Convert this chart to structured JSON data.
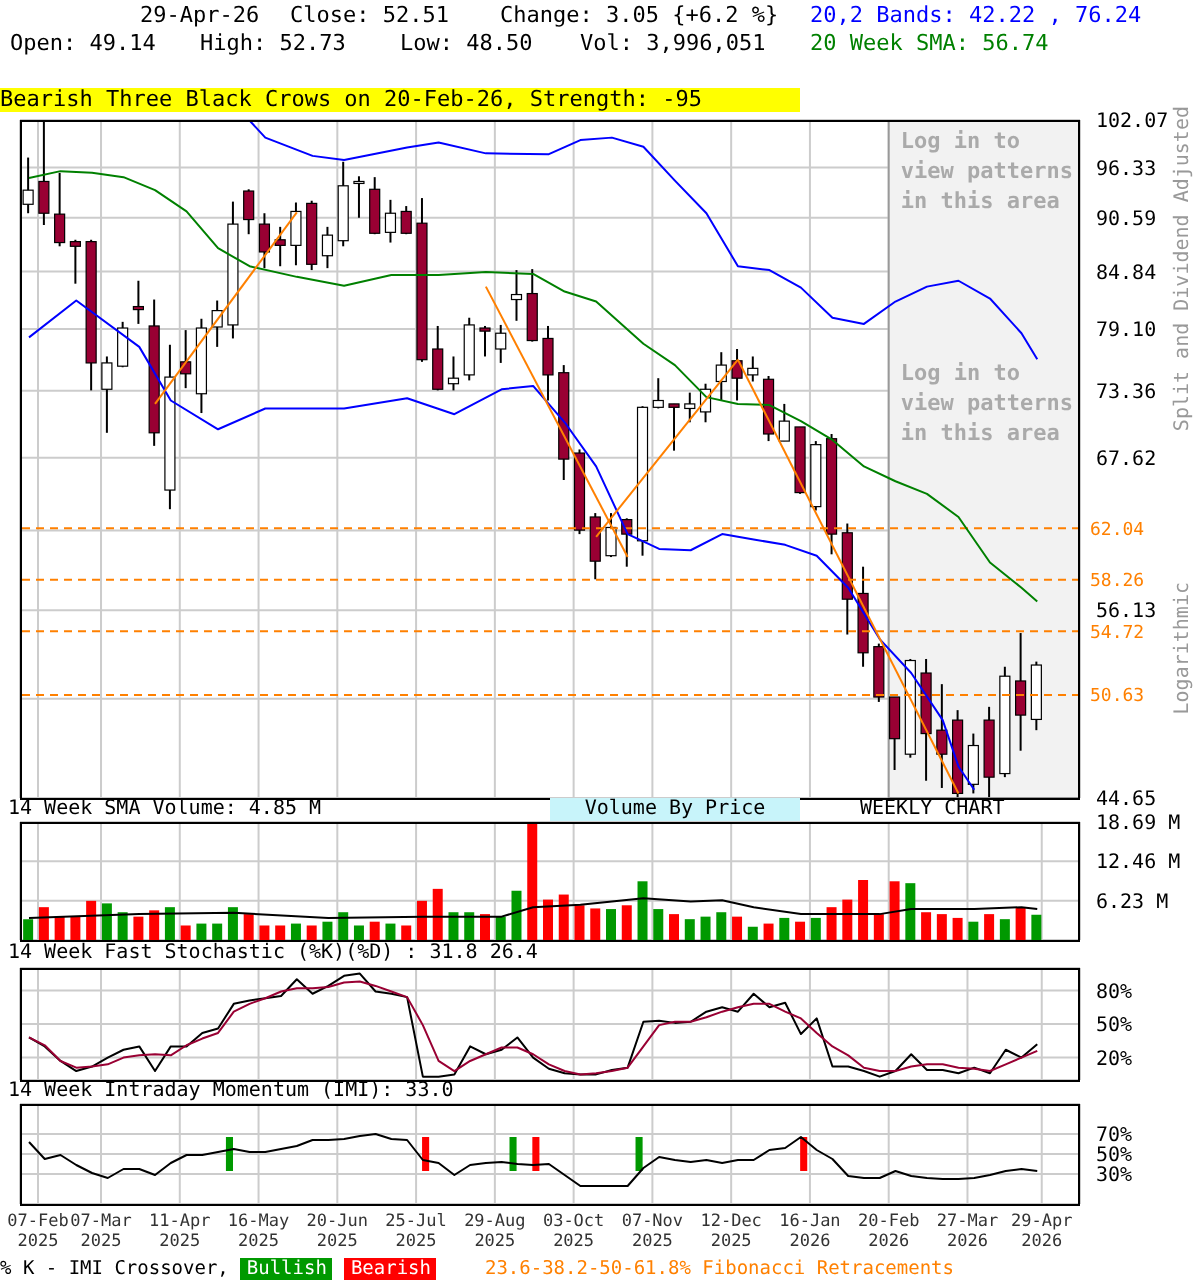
{
  "chart_data": [
    {
      "type": "candlestick",
      "ylabel": "Split and Dividend Adjusted",
      "log": true,
      "grid": true,
      "tick_labels": "y",
      "annotations": [
        "29-Apr-26",
        "Close: 52.51",
        "Change: 3.05 {+6.2 %}",
        "Open: 49.14",
        "High: 52.73",
        "Low: 48.50",
        "Vol: 3,996,051",
        "20,2 Bands: 42.22 , 76.24",
        "20 Week SMA: 56.74",
        "Bearish Three Black Crows on 20-Feb-26, Strength: -95",
        "Log in to view patterns in this area",
        "Logarithmic"
      ],
      "x": [
        "2025-02-03",
        "2025-02-10",
        "2025-02-17",
        "2025-02-24",
        "2025-03-03",
        "2025-03-10",
        "2025-03-17",
        "2025-03-24",
        "2025-03-31",
        "2025-04-07",
        "2025-04-14",
        "2025-04-21",
        "2025-04-28",
        "2025-05-05",
        "2025-05-12",
        "2025-05-19",
        "2025-05-26",
        "2025-06-02",
        "2025-06-09",
        "2025-06-16",
        "2025-06-23",
        "2025-06-30",
        "2025-07-07",
        "2025-07-14",
        "2025-07-21",
        "2025-07-28",
        "2025-08-04",
        "2025-08-11",
        "2025-08-18",
        "2025-08-25",
        "2025-09-01",
        "2025-09-08",
        "2025-09-15",
        "2025-09-22",
        "2025-09-29",
        "2025-10-06",
        "2025-10-13",
        "2025-10-20",
        "2025-10-27",
        "2025-11-03",
        "2025-11-10",
        "2025-11-17",
        "2025-11-24",
        "2025-12-01",
        "2025-12-08",
        "2025-12-15",
        "2025-12-22",
        "2025-12-29",
        "2026-01-05",
        "2026-01-12",
        "2026-01-19",
        "2026-01-26",
        "2026-02-02",
        "2026-02-09",
        "2026-02-16",
        "2026-02-23",
        "2026-03-02",
        "2026-03-09",
        "2026-03-16",
        "2026-03-23",
        "2026-03-30",
        "2026-04-06",
        "2026-04-13",
        "2026-04-20",
        "2026-04-27"
      ],
      "ohlc": [
        [
          92.1,
          97.5,
          91.1,
          93.7
        ],
        [
          94.7,
          101.9,
          89.8,
          91.1
        ],
        [
          91.0,
          95.7,
          87.5,
          87.9
        ],
        [
          88.0,
          88.2,
          83.6,
          87.5
        ],
        [
          88.0,
          88.2,
          73.4,
          75.9
        ],
        [
          73.5,
          76.5,
          69.7,
          75.9
        ],
        [
          75.6,
          79.8,
          75.5,
          79.2
        ],
        [
          81.3,
          83.9,
          79.6,
          81.0
        ],
        [
          79.4,
          82.0,
          68.6,
          69.7
        ],
        [
          65.0,
          77.6,
          63.5,
          74.6
        ],
        [
          76.0,
          79.0,
          73.6,
          74.9
        ],
        [
          73.1,
          80.1,
          71.4,
          79.2
        ],
        [
          79.3,
          81.9,
          77.4,
          80.9
        ],
        [
          79.5,
          92.4,
          78.2,
          89.9
        ],
        [
          93.6,
          93.8,
          88.8,
          90.4
        ],
        [
          89.9,
          91.1,
          85.2,
          86.9
        ],
        [
          88.2,
          89.6,
          85.4,
          87.6
        ],
        [
          87.6,
          92.3,
          85.5,
          91.3
        ],
        [
          92.2,
          92.5,
          85.0,
          85.6
        ],
        [
          86.5,
          89.6,
          85.2,
          88.7
        ],
        [
          88.1,
          97.0,
          87.5,
          94.2
        ],
        [
          94.6,
          95.3,
          90.6,
          94.7
        ],
        [
          93.8,
          95.2,
          88.8,
          88.9
        ],
        [
          89.0,
          92.6,
          87.9,
          91.1
        ],
        [
          91.3,
          91.9,
          88.8,
          88.9
        ],
        [
          90.0,
          92.8,
          76.0,
          76.2
        ],
        [
          77.2,
          79.4,
          73.4,
          73.5
        ],
        [
          74.0,
          76.5,
          73.4,
          74.5
        ],
        [
          74.8,
          80.2,
          74.3,
          79.5
        ],
        [
          79.2,
          79.4,
          76.5,
          78.9
        ],
        [
          77.2,
          79.5,
          75.9,
          78.7
        ],
        [
          82.0,
          85.0,
          79.9,
          82.5
        ],
        [
          82.6,
          85.1,
          77.9,
          78.0
        ],
        [
          78.2,
          79.4,
          72.5,
          74.8
        ],
        [
          75.0,
          75.7,
          65.8,
          67.5
        ],
        [
          68.0,
          68.3,
          61.6,
          61.9
        ],
        [
          62.9,
          63.2,
          58.3,
          59.6
        ],
        [
          60.0,
          63.2,
          59.9,
          62.1
        ],
        [
          62.7,
          62.8,
          59.2,
          61.6
        ],
        [
          61.1,
          72.0,
          60.0,
          71.9
        ],
        [
          71.9,
          74.5,
          71.8,
          72.5
        ],
        [
          72.2,
          72.2,
          68.2,
          71.9
        ],
        [
          71.8,
          73.2,
          70.6,
          72.2
        ],
        [
          71.5,
          74.0,
          70.6,
          73.5
        ],
        [
          74.2,
          76.9,
          72.5,
          75.7
        ],
        [
          76.1,
          77.2,
          72.5,
          74.5
        ],
        [
          74.8,
          76.5,
          74.2,
          75.4
        ],
        [
          74.4,
          74.7,
          69.0,
          69.6
        ],
        [
          69.0,
          72.2,
          69.0,
          70.7
        ],
        [
          70.2,
          70.2,
          64.7,
          64.8
        ],
        [
          63.7,
          69.0,
          63.4,
          68.7
        ],
        [
          69.2,
          69.6,
          60.1,
          61.6
        ],
        [
          61.7,
          62.4,
          54.5,
          56.9
        ],
        [
          57.3,
          59.2,
          52.4,
          53.3
        ],
        [
          53.7,
          53.9,
          50.2,
          50.5
        ],
        [
          50.5,
          50.5,
          46.2,
          48.0
        ],
        [
          47.1,
          52.9,
          46.9,
          52.8
        ],
        [
          52.0,
          52.9,
          45.6,
          48.3
        ],
        [
          48.5,
          51.3,
          45.2,
          47.1
        ],
        [
          49.1,
          49.7,
          44.7,
          44.9
        ],
        [
          45.4,
          48.3,
          44.9,
          47.6
        ],
        [
          49.1,
          49.9,
          44.7,
          45.8
        ],
        [
          46.0,
          52.4,
          45.8,
          51.8
        ],
        [
          51.5,
          54.6,
          47.3,
          49.4
        ],
        [
          49.14,
          52.73,
          48.5,
          52.51
        ]
      ],
      "colors": [
        "#ffffff",
        "#990033",
        "#990033",
        "#990033",
        "#990033",
        "#ffffff",
        "#ffffff",
        "#990033",
        "#990033",
        "#ffffff",
        "#990033",
        "#ffffff",
        "#ffffff",
        "#ffffff",
        "#990033",
        "#990033",
        "#990033",
        "#ffffff",
        "#990033",
        "#ffffff",
        "#ffffff",
        "#ffffff",
        "#990033",
        "#ffffff",
        "#990033",
        "#990033",
        "#990033",
        "#ffffff",
        "#ffffff",
        "#990033",
        "#ffffff",
        "#ffffff",
        "#990033",
        "#990033",
        "#990033",
        "#990033",
        "#990033",
        "#ffffff",
        "#990033",
        "#ffffff",
        "#ffffff",
        "#990033",
        "#ffffff",
        "#ffffff",
        "#ffffff",
        "#990033",
        "#ffffff",
        "#990033",
        "#ffffff",
        "#990033",
        "#ffffff",
        "#990033",
        "#990033",
        "#990033",
        "#990033",
        "#990033",
        "#ffffff",
        "#990033",
        "#990033",
        "#990033",
        "#ffffff",
        "#990033",
        "#ffffff",
        "#990033",
        "#ffffff"
      ],
      "series": [
        {
          "type": "line",
          "color": "#0000ff",
          "x": [
            "2025-05-12",
            "2025-05-19",
            "2025-06-09",
            "2025-06-23",
            "2025-07-21",
            "2025-08-04",
            "2025-08-25",
            "2025-09-22",
            "2025-10-06",
            "2025-10-20",
            "2025-11-03",
            "2025-11-17",
            "2025-12-01",
            "2025-12-15",
            "2025-12-29",
            "2026-01-12",
            "2026-01-26",
            "2026-02-09",
            "2026-02-23",
            "2026-03-09",
            "2026-03-23",
            "2026-04-06",
            "2026-04-20",
            "2026-04-27"
          ],
          "values": [
            102.0,
            99.9,
            97.7,
            97.2,
            98.7,
            99.3,
            98.0,
            97.9,
            99.6,
            99.9,
            98.8,
            94.8,
            91.1,
            85.4,
            85.0,
            83.2,
            80.2,
            79.6,
            81.8,
            83.3,
            83.9,
            82.1,
            78.7,
            76.24
          ]
        },
        {
          "type": "line",
          "color": "#0000ff",
          "x": [
            "2025-02-03",
            "2025-02-24",
            "2025-03-24",
            "2025-04-07",
            "2025-04-28",
            "2025-05-19",
            "2025-06-23",
            "2025-07-21",
            "2025-08-11",
            "2025-09-01",
            "2025-09-15",
            "2025-09-29",
            "2025-10-13",
            "2025-10-27",
            "2025-11-10",
            "2025-11-24",
            "2025-12-08",
            "2025-12-22",
            "2026-01-05",
            "2026-01-19",
            "2026-02-02",
            "2026-02-16",
            "2026-03-02",
            "2026-03-16",
            "2026-03-23",
            "2026-03-30"
          ],
          "values": [
            78.3,
            81.9,
            77.4,
            72.5,
            70.0,
            71.8,
            71.8,
            72.7,
            71.3,
            73.5,
            73.8,
            70.6,
            66.9,
            61.6,
            60.5,
            60.4,
            61.6,
            61.2,
            60.8,
            60.0,
            57.7,
            54.2,
            52.0,
            49.1,
            46.4,
            45.1
          ]
        },
        {
          "type": "line",
          "color": "#008000",
          "x": [
            "2025-02-03",
            "2025-02-17",
            "2025-03-03",
            "2025-03-17",
            "2025-03-31",
            "2025-04-14",
            "2025-04-28",
            "2025-05-12",
            "2025-06-02",
            "2025-06-23",
            "2025-07-14",
            "2025-08-04",
            "2025-08-25",
            "2025-09-15",
            "2025-09-29",
            "2025-10-13",
            "2025-11-03",
            "2025-11-17",
            "2025-12-01",
            "2025-12-15",
            "2025-12-29",
            "2026-01-12",
            "2026-01-26",
            "2026-02-09",
            "2026-02-23",
            "2026-03-09",
            "2026-03-23",
            "2026-04-06",
            "2026-04-20",
            "2026-04-27"
          ],
          "values": [
            95.1,
            95.9,
            95.7,
            95.2,
            93.7,
            91.3,
            87.3,
            85.4,
            84.3,
            83.4,
            84.5,
            84.5,
            84.8,
            84.6,
            82.8,
            81.8,
            77.7,
            75.7,
            72.8,
            72.2,
            72.1,
            70.7,
            69.1,
            66.9,
            65.7,
            64.7,
            62.9,
            59.5,
            57.7,
            56.74
          ]
        },
        {
          "type": "line",
          "color": "#ff8000",
          "x": [
            "2025-03-31",
            "2025-06-02"
          ],
          "values": [
            72.2,
            91.2
          ]
        },
        {
          "type": "line",
          "color": "#ff8000",
          "x": [
            "2025-08-25",
            "2025-10-27"
          ],
          "values": [
            83.3,
            59.9
          ]
        },
        {
          "type": "line",
          "color": "#ff8000",
          "x": [
            "2025-10-13",
            "2025-12-15"
          ],
          "values": [
            61.4,
            76.2
          ]
        },
        {
          "type": "line",
          "color": "#ff8000",
          "x": [
            "2025-12-15",
            "2026-03-23"
          ],
          "values": [
            76.2,
            44.9
          ]
        }
      ],
      "xlim": [
        "2025-01-30",
        "2026-05-16"
      ],
      "xticks": [
        "2025-02-07",
        "2025-03-07",
        "2025-04-11",
        "2025-05-16",
        "2025-06-20",
        "2025-07-25",
        "2025-08-29",
        "2025-10-03",
        "2025-11-07",
        "2025-12-12",
        "2026-01-16",
        "2026-02-20",
        "2026-03-27",
        "2026-04-29"
      ],
      "ylim": [
        44.65,
        102.07
      ],
      "yticks": [
        44.65,
        {
          "value": 50.39,
          "label": null
        },
        56.13,
        {
          "value": 61.88,
          "label": null
        },
        67.62,
        73.36,
        {
          "value": 79.1,
          "label": "79.10"
        },
        84.84,
        90.59,
        96.33,
        102.07
      ],
      "ref_lines": [
        {
          "axis": "y",
          "value": 62.04,
          "label": "62.04",
          "color": "#ff8000",
          "line_style": "dashed"
        },
        {
          "axis": "y",
          "value": 58.26,
          "label": "58.26",
          "color": "#ff8000",
          "line_style": "dashed"
        },
        {
          "axis": "y",
          "value": 54.72,
          "label": "54.72",
          "color": "#ff8000",
          "line_style": "dashed"
        },
        {
          "axis": "y",
          "value": 50.63,
          "label": "50.63",
          "color": "#ff8000",
          "line_style": "dashed"
        }
      ],
      "bands": [
        {
          "axis": "x",
          "from": "2026-02-20",
          "to": "2026-05-16",
          "label": "Log in to view patterns in this area",
          "color": "#f2f2f2"
        }
      ]
    },
    {
      "type": "bar",
      "title": "14 Week SMA Volume: 4.85 M",
      "grid": true,
      "tick_labels": "y",
      "annotations": [
        "Volume By Price",
        "WEEKLY CHART"
      ],
      "x": [
        "2025-02-03",
        "2025-02-10",
        "2025-02-17",
        "2025-02-24",
        "2025-03-03",
        "2025-03-10",
        "2025-03-17",
        "2025-03-24",
        "2025-03-31",
        "2025-04-07",
        "2025-04-14",
        "2025-04-21",
        "2025-04-28",
        "2025-05-05",
        "2025-05-12",
        "2025-05-19",
        "2025-05-26",
        "2025-06-02",
        "2025-06-09",
        "2025-06-16",
        "2025-06-23",
        "2025-06-30",
        "2025-07-07",
        "2025-07-14",
        "2025-07-21",
        "2025-07-28",
        "2025-08-04",
        "2025-08-11",
        "2025-08-18",
        "2025-08-25",
        "2025-09-01",
        "2025-09-08",
        "2025-09-15",
        "2025-09-22",
        "2025-09-29",
        "2025-10-06",
        "2025-10-13",
        "2025-10-20",
        "2025-10-27",
        "2025-11-03",
        "2025-11-10",
        "2025-11-17",
        "2025-11-24",
        "2025-12-01",
        "2025-12-08",
        "2025-12-15",
        "2025-12-22",
        "2025-12-29",
        "2026-01-05",
        "2026-01-12",
        "2026-01-19",
        "2026-01-26",
        "2026-02-02",
        "2026-02-09",
        "2026-02-16",
        "2026-02-23",
        "2026-03-02",
        "2026-03-09",
        "2026-03-16",
        "2026-03-23",
        "2026-03-30",
        "2026-04-06",
        "2026-04-13",
        "2026-04-20",
        "2026-04-27"
      ],
      "series": [
        {
          "type": "bar",
          "values": [
            3.3,
            5.2,
            3.7,
            3.7,
            6.2,
            5.8,
            4.4,
            3.7,
            4.7,
            5.2,
            2.3,
            2.6,
            2.6,
            5.2,
            4.1,
            2.3,
            2.3,
            2.6,
            2.3,
            2.9,
            4.4,
            2.3,
            2.9,
            2.6,
            2.3,
            6.2,
            8.1,
            4.4,
            4.4,
            4.1,
            3.7,
            7.8,
            18.6,
            6.4,
            7.2,
            5.5,
            5.0,
            4.9,
            5.5,
            9.3,
            4.9,
            4.1,
            3.3,
            3.7,
            4.4,
            3.7,
            2.1,
            2.6,
            3.5,
            2.9,
            3.5,
            5.2,
            6.4,
            9.5,
            4.1,
            9.3,
            9.0,
            4.4,
            4.1,
            3.5,
            2.9,
            4.1,
            3.3,
            5.2,
            4.0
          ],
          "colors": [
            "#009900",
            "#ff0000",
            "#ff0000",
            "#ff0000",
            "#ff0000",
            "#009900",
            "#009900",
            "#ff0000",
            "#ff0000",
            "#009900",
            "#ff0000",
            "#009900",
            "#009900",
            "#009900",
            "#ff0000",
            "#ff0000",
            "#ff0000",
            "#009900",
            "#ff0000",
            "#009900",
            "#009900",
            "#009900",
            "#ff0000",
            "#009900",
            "#ff0000",
            "#ff0000",
            "#ff0000",
            "#009900",
            "#009900",
            "#ff0000",
            "#009900",
            "#009900",
            "#ff0000",
            "#ff0000",
            "#ff0000",
            "#ff0000",
            "#ff0000",
            "#009900",
            "#ff0000",
            "#009900",
            "#009900",
            "#ff0000",
            "#009900",
            "#009900",
            "#009900",
            "#ff0000",
            "#009900",
            "#ff0000",
            "#009900",
            "#ff0000",
            "#009900",
            "#ff0000",
            "#ff0000",
            "#ff0000",
            "#ff0000",
            "#ff0000",
            "#009900",
            "#ff0000",
            "#ff0000",
            "#ff0000",
            "#009900",
            "#ff0000",
            "#009900",
            "#ff0000",
            "#009900"
          ]
        },
        {
          "type": "line",
          "color": "#000000",
          "x": [
            "2025-02-03",
            "2025-03-24",
            "2025-05-05",
            "2025-06-16",
            "2025-07-28",
            "2025-09-01",
            "2025-09-15",
            "2025-10-06",
            "2025-11-03",
            "2025-11-24",
            "2025-12-08",
            "2025-12-22",
            "2026-01-12",
            "2026-02-16",
            "2026-03-02",
            "2026-03-30",
            "2026-04-20",
            "2026-04-27"
          ],
          "values": [
            3.5,
            4.1,
            4.3,
            3.5,
            3.7,
            3.7,
            5.2,
            5.6,
            6.6,
            6.1,
            6.3,
            5.2,
            4.1,
            4.1,
            4.9,
            4.9,
            5.2,
            4.9
          ]
        }
      ],
      "xlim": [
        "2025-01-30",
        "2026-05-16"
      ],
      "xticks": [
        "2025-02-07",
        "2025-03-07",
        "2025-04-11",
        "2025-05-16",
        "2025-06-20",
        "2025-07-25",
        "2025-08-29",
        "2025-10-03",
        "2025-11-07",
        "2025-12-12",
        "2026-01-16",
        "2026-02-20",
        "2026-03-27",
        "2026-04-29"
      ],
      "ylim": [
        0,
        18.69
      ],
      "yticks": [
        {
          "value": 6.23,
          "label": "6.23 M"
        },
        {
          "value": 12.46,
          "label": "12.46 M"
        },
        {
          "value": 18.69,
          "label": "18.69 M"
        }
      ]
    },
    {
      "type": "line",
      "title": "14 Week Fast Stochastic (%K)(%D) : 31.8 26.4",
      "grid": true,
      "tick_labels": "y",
      "x": [
        "2025-02-03",
        "2025-02-10",
        "2025-02-17",
        "2025-02-24",
        "2025-03-03",
        "2025-03-10",
        "2025-03-17",
        "2025-03-24",
        "2025-03-31",
        "2025-04-07",
        "2025-04-14",
        "2025-04-21",
        "2025-04-28",
        "2025-05-05",
        "2025-05-12",
        "2025-05-19",
        "2025-05-26",
        "2025-06-02",
        "2025-06-09",
        "2025-06-16",
        "2025-06-23",
        "2025-06-30",
        "2025-07-07",
        "2025-07-14",
        "2025-07-21",
        "2025-07-28",
        "2025-08-04",
        "2025-08-11",
        "2025-08-18",
        "2025-08-25",
        "2025-09-01",
        "2025-09-08",
        "2025-09-15",
        "2025-09-22",
        "2025-09-29",
        "2025-10-06",
        "2025-10-13",
        "2025-10-20",
        "2025-10-27",
        "2025-11-03",
        "2025-11-10",
        "2025-11-17",
        "2025-11-24",
        "2025-12-01",
        "2025-12-08",
        "2025-12-15",
        "2025-12-22",
        "2025-12-29",
        "2026-01-05",
        "2026-01-12",
        "2026-01-19",
        "2026-01-26",
        "2026-02-02",
        "2026-02-09",
        "2026-02-16",
        "2026-02-23",
        "2026-03-02",
        "2026-03-09",
        "2026-03-16",
        "2026-03-23",
        "2026-03-30",
        "2026-04-06",
        "2026-04-13",
        "2026-04-20",
        "2026-04-27"
      ],
      "series": [
        {
          "color": "#000000",
          "values": [
            38,
            30,
            17,
            8,
            12,
            20,
            27,
            30,
            8,
            30,
            30,
            42,
            46,
            68,
            71,
            73,
            75,
            90,
            77,
            84,
            93,
            95,
            79,
            77,
            74,
            3,
            3,
            5,
            30,
            23,
            27,
            38,
            20,
            10,
            6,
            5,
            5,
            9,
            11,
            52,
            53,
            51,
            52,
            61,
            65,
            61,
            77,
            65,
            69,
            41,
            55,
            12,
            12,
            8,
            3,
            8,
            23,
            9,
            9,
            6,
            11,
            6,
            27,
            20,
            32
          ]
        },
        {
          "color": "#990033",
          "values": [
            38,
            31,
            17,
            11,
            12,
            14,
            20,
            22,
            23,
            22,
            31,
            37,
            42,
            61,
            68,
            73,
            79,
            82,
            82,
            83,
            87,
            88,
            84,
            79,
            74,
            49,
            17,
            8,
            17,
            23,
            29,
            29,
            23,
            14,
            8,
            5,
            6,
            8,
            11,
            30,
            49,
            52,
            52,
            56,
            61,
            65,
            68,
            68,
            61,
            55,
            42,
            30,
            22,
            11,
            8,
            8,
            12,
            14,
            14,
            11,
            10,
            8,
            14,
            20,
            26
          ]
        }
      ],
      "xlim": [
        "2025-01-30",
        "2026-05-16"
      ],
      "xticks": [
        "2025-02-07",
        "2025-03-07",
        "2025-04-11",
        "2025-05-16",
        "2025-06-20",
        "2025-07-25",
        "2025-08-29",
        "2025-10-03",
        "2025-11-07",
        "2025-12-12",
        "2026-01-16",
        "2026-02-20",
        "2026-03-27",
        "2026-04-29"
      ],
      "ylim": [
        0,
        100
      ],
      "yticks": [
        {
          "value": 20,
          "label": "20%"
        },
        {
          "value": 50,
          "label": "50%"
        },
        {
          "value": 80,
          "label": "80%"
        }
      ]
    },
    {
      "type": "line",
      "title": "14 Week Intraday Momentum (IMI): 33.0",
      "grid": true,
      "legend": "bottom",
      "annotations": [
        "% K - IMI Crossover,",
        "23.6-38.2-50-61.8% Fibonacci Retracements"
      ],
      "x": [
        "2025-02-03",
        "2025-02-10",
        "2025-02-17",
        "2025-02-24",
        "2025-03-03",
        "2025-03-10",
        "2025-03-17",
        "2025-03-24",
        "2025-03-31",
        "2025-04-07",
        "2025-04-14",
        "2025-04-21",
        "2025-04-28",
        "2025-05-05",
        "2025-05-12",
        "2025-05-19",
        "2025-05-26",
        "2025-06-02",
        "2025-06-09",
        "2025-06-16",
        "2025-06-23",
        "2025-06-30",
        "2025-07-07",
        "2025-07-14",
        "2025-07-21",
        "2025-07-28",
        "2025-08-04",
        "2025-08-11",
        "2025-08-18",
        "2025-08-25",
        "2025-09-01",
        "2025-09-08",
        "2025-09-15",
        "2025-09-22",
        "2025-09-29",
        "2025-10-06",
        "2025-10-13",
        "2025-10-20",
        "2025-10-27",
        "2025-11-03",
        "2025-11-10",
        "2025-11-17",
        "2025-11-24",
        "2025-12-01",
        "2025-12-08",
        "2025-12-15",
        "2025-12-22",
        "2025-12-29",
        "2026-01-05",
        "2026-01-12",
        "2026-01-19",
        "2026-01-26",
        "2026-02-02",
        "2026-02-09",
        "2026-02-16",
        "2026-02-23",
        "2026-03-02",
        "2026-03-09",
        "2026-03-16",
        "2026-03-23",
        "2026-03-30",
        "2026-04-06",
        "2026-04-13",
        "2026-04-20",
        "2026-04-27"
      ],
      "series": [
        {
          "type": "bar",
          "name": "Bullish",
          "color": "#009900",
          "x": [
            "2025-05-05",
            "2025-09-08",
            "2025-11-03"
          ],
          "base": [
            33,
            33,
            33
          ],
          "values": [
            34,
            34,
            34
          ]
        },
        {
          "type": "bar",
          "name": "Bearish",
          "color": "#ff0000",
          "x": [
            "2025-07-28",
            "2025-09-15",
            "2026-01-12"
          ],
          "base": [
            33,
            33,
            33
          ],
          "values": [
            34,
            34,
            34
          ]
        },
        {
          "color": "#000000",
          "values": [
            62,
            45,
            49,
            39,
            31,
            26,
            35,
            35,
            29,
            41,
            49,
            49,
            52,
            55,
            52,
            52,
            55,
            58,
            64,
            64,
            65,
            68,
            70,
            65,
            64,
            44,
            41,
            29,
            39,
            41,
            42,
            40,
            39,
            40,
            29,
            18,
            18,
            18,
            18,
            36,
            47,
            44,
            42,
            44,
            41,
            44,
            44,
            54,
            56,
            67,
            54,
            45,
            28,
            26,
            26,
            33,
            28,
            26,
            25,
            25,
            26,
            29,
            33,
            35,
            33.0
          ]
        }
      ],
      "xlim": [
        "2025-01-30",
        "2026-05-16"
      ],
      "xticks": [
        {
          "value": "2025-02-07",
          "label": "07-Feb 2025"
        },
        {
          "value": "2025-03-07",
          "label": "07-Mar 2025"
        },
        {
          "value": "2025-04-11",
          "label": "11-Apr 2025"
        },
        {
          "value": "2025-05-16",
          "label": "16-May 2025"
        },
        {
          "value": "2025-06-20",
          "label": "20-Jun 2025"
        },
        {
          "value": "2025-07-25",
          "label": "25-Jul 2025"
        },
        {
          "value": "2025-08-29",
          "label": "29-Aug 2025"
        },
        {
          "value": "2025-10-03",
          "label": "03-Oct 2025"
        },
        {
          "value": "2025-11-07",
          "label": "07-Nov 2025"
        },
        {
          "value": "2025-12-12",
          "label": "12-Dec 2025"
        },
        {
          "value": "2026-01-16",
          "label": "16-Jan 2026"
        },
        {
          "value": "2026-02-20",
          "label": "20-Feb 2026"
        },
        {
          "value": "2026-03-27",
          "label": "27-Mar 2026"
        },
        {
          "value": "2026-04-29",
          "label": "29-Apr 2026"
        }
      ],
      "ylim": [
        0,
        100
      ],
      "yticks": [
        {
          "value": 30,
          "label": "30%"
        },
        {
          "value": 50,
          "label": "50%"
        },
        {
          "value": 70,
          "label": "70%"
        }
      ]
    }
  ]
}
